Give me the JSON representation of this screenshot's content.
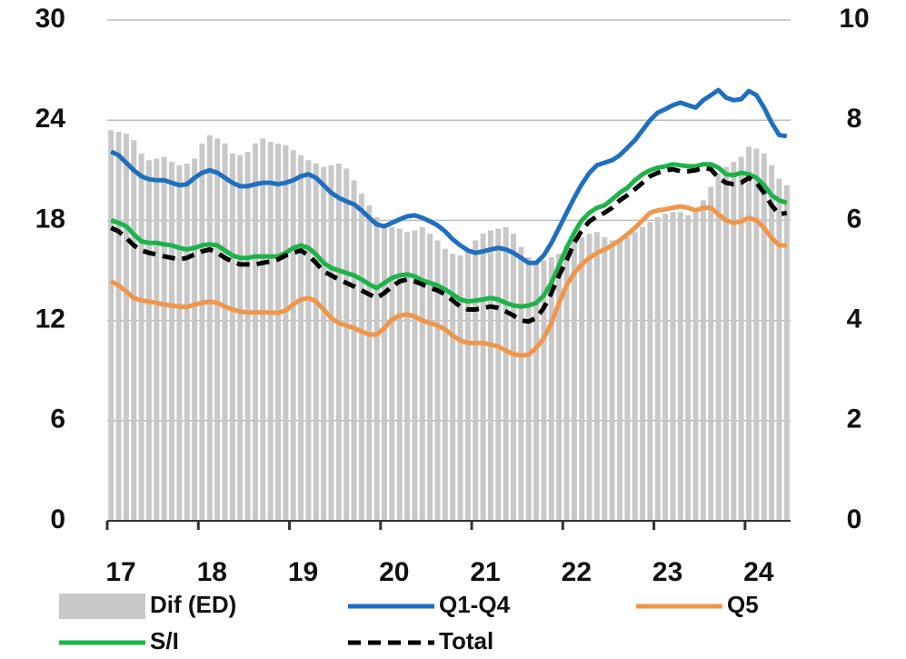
{
  "chart_data": {
    "type": "bar-line",
    "legend": "bottom",
    "grid": true,
    "categories": [
      "17",
      null,
      null,
      null,
      null,
      null,
      null,
      null,
      null,
      null,
      null,
      null,
      "18",
      null,
      null,
      null,
      null,
      null,
      null,
      null,
      null,
      null,
      null,
      null,
      "19",
      null,
      null,
      null,
      null,
      null,
      null,
      null,
      null,
      null,
      null,
      null,
      "20",
      null,
      null,
      null,
      null,
      null,
      null,
      null,
      null,
      null,
      null,
      null,
      "21",
      null,
      null,
      null,
      null,
      null,
      null,
      null,
      null,
      null,
      null,
      null,
      "22",
      null,
      null,
      null,
      null,
      null,
      null,
      null,
      null,
      null,
      null,
      null,
      "23",
      null,
      null,
      null,
      null,
      null,
      null,
      null,
      null,
      null,
      null,
      null,
      "24",
      null,
      null,
      null,
      null,
      null
    ],
    "ylim": [
      0,
      30
    ],
    "yticks": [
      0,
      6,
      12,
      18,
      24,
      30
    ],
    "y2lim": [
      0,
      10
    ],
    "y2ticks": [
      0,
      2,
      4,
      6,
      8,
      10
    ],
    "series": [
      {
        "name": "Dif (ED)",
        "type": "bar",
        "axis": "y",
        "color": "#c8c8c8",
        "values": [
          23.4,
          23.3,
          23.2,
          22.8,
          22,
          21.6,
          21.7,
          21.8,
          21.5,
          21.3,
          21.4,
          21.7,
          22.6,
          23.1,
          22.9,
          22.6,
          22,
          21.9,
          22.1,
          22.6,
          22.9,
          22.7,
          22.6,
          22.5,
          22.2,
          21.9,
          21.6,
          21.4,
          21.2,
          21.3,
          21.4,
          21.1,
          20.4,
          19.6,
          18.9,
          18.2,
          17.8,
          17.6,
          17.5,
          17.3,
          17.4,
          17.6,
          17.2,
          16.8,
          16.3,
          16,
          15.9,
          16.1,
          16.8,
          17.2,
          17.4,
          17.5,
          17.6,
          17.2,
          16.4,
          15.8,
          15.4,
          15.6,
          15.8,
          16,
          16.5,
          16.8,
          17,
          17.2,
          17.3,
          17,
          16.8,
          16.8,
          17,
          17.3,
          17.6,
          17.9,
          18.2,
          18.4,
          18.5,
          18.5,
          18.3,
          18.5,
          19.2,
          20,
          20.8,
          21.2,
          21.5,
          21.8,
          22.4,
          22.3,
          22,
          21.3,
          20.5,
          20.1
        ]
      },
      {
        "name": "Q1-Q4",
        "type": "line",
        "axis": "y2",
        "color": "#1f6fc0",
        "values": [
          7.37,
          7.3,
          7.15,
          7,
          6.88,
          6.82,
          6.8,
          6.8,
          6.75,
          6.7,
          6.72,
          6.85,
          6.95,
          7,
          6.95,
          6.85,
          6.75,
          6.68,
          6.68,
          6.72,
          6.75,
          6.75,
          6.72,
          6.75,
          6.8,
          6.88,
          6.92,
          6.85,
          6.7,
          6.55,
          6.45,
          6.38,
          6.32,
          6.2,
          6.05,
          5.92,
          5.88,
          5.95,
          6.02,
          6.08,
          6.1,
          6.05,
          5.98,
          5.9,
          5.78,
          5.62,
          5.5,
          5.4,
          5.35,
          5.38,
          5.42,
          5.45,
          5.42,
          5.35,
          5.25,
          5.15,
          5.15,
          5.3,
          5.55,
          5.85,
          6.15,
          6.45,
          6.72,
          6.95,
          7.1,
          7.15,
          7.2,
          7.3,
          7.45,
          7.6,
          7.8,
          8,
          8.15,
          8.22,
          8.3,
          8.35,
          8.3,
          8.25,
          8.4,
          8.5,
          8.6,
          8.45,
          8.4,
          8.42,
          8.58,
          8.5,
          8.25,
          7.95,
          7.7,
          7.68
        ]
      },
      {
        "name": "Q5",
        "type": "line",
        "axis": "y2",
        "color": "#f0964a",
        "values": [
          4.78,
          4.7,
          4.58,
          4.45,
          4.4,
          4.38,
          4.35,
          4.32,
          4.3,
          4.28,
          4.27,
          4.32,
          4.35,
          4.38,
          4.35,
          4.28,
          4.22,
          4.18,
          4.16,
          4.16,
          4.16,
          4.16,
          4.15,
          4.2,
          4.32,
          4.42,
          4.45,
          4.38,
          4.22,
          4.05,
          3.95,
          3.9,
          3.85,
          3.78,
          3.72,
          3.72,
          3.85,
          4.02,
          4.1,
          4.12,
          4.08,
          4,
          3.95,
          3.9,
          3.82,
          3.7,
          3.6,
          3.55,
          3.55,
          3.55,
          3.52,
          3.48,
          3.4,
          3.33,
          3.3,
          3.32,
          3.45,
          3.65,
          3.95,
          4.35,
          4.7,
          4.95,
          5.12,
          5.25,
          5.35,
          5.42,
          5.5,
          5.6,
          5.72,
          5.85,
          6,
          6.15,
          6.2,
          6.22,
          6.25,
          6.28,
          6.25,
          6.2,
          6.25,
          6.25,
          6.12,
          6,
          5.95,
          5.98,
          6.05,
          6,
          5.85,
          5.65,
          5.5,
          5.5
        ]
      },
      {
        "name": "S/I",
        "type": "line",
        "axis": "y2",
        "color": "#1db34a",
        "values": [
          6,
          5.95,
          5.88,
          5.72,
          5.58,
          5.55,
          5.55,
          5.52,
          5.5,
          5.45,
          5.42,
          5.45,
          5.5,
          5.52,
          5.5,
          5.4,
          5.3,
          5.25,
          5.25,
          5.28,
          5.28,
          5.28,
          5.28,
          5.35,
          5.45,
          5.5,
          5.45,
          5.32,
          5.15,
          5.05,
          5,
          4.95,
          4.9,
          4.82,
          4.72,
          4.65,
          4.75,
          4.85,
          4.9,
          4.92,
          4.88,
          4.8,
          4.75,
          4.7,
          4.62,
          4.52,
          4.42,
          4.38,
          4.4,
          4.42,
          4.45,
          4.42,
          4.35,
          4.3,
          4.28,
          4.3,
          4.35,
          4.5,
          4.75,
          5.1,
          5.45,
          5.75,
          6,
          6.15,
          6.25,
          6.3,
          6.42,
          6.55,
          6.65,
          6.8,
          6.92,
          7,
          7.05,
          7.08,
          7.12,
          7.1,
          7.08,
          7.08,
          7.12,
          7.12,
          7.05,
          6.92,
          6.9,
          6.95,
          6.92,
          6.85,
          6.7,
          6.5,
          6.4,
          6.35
        ]
      },
      {
        "name": "Total",
        "type": "line",
        "axis": "y2",
        "color": "#000000",
        "dashed": true,
        "values": [
          5.85,
          5.78,
          5.65,
          5.5,
          5.4,
          5.35,
          5.32,
          5.28,
          5.25,
          5.22,
          5.25,
          5.32,
          5.38,
          5.42,
          5.35,
          5.25,
          5.18,
          5.12,
          5.12,
          5.12,
          5.15,
          5.18,
          5.22,
          5.3,
          5.35,
          5.4,
          5.3,
          5.15,
          4.98,
          4.9,
          4.82,
          4.75,
          4.68,
          4.6,
          4.52,
          4.45,
          4.55,
          4.68,
          4.78,
          4.82,
          4.78,
          4.72,
          4.65,
          4.6,
          4.52,
          4.4,
          4.28,
          4.22,
          4.22,
          4.25,
          4.28,
          4.25,
          4.18,
          4.1,
          4,
          3.98,
          4.05,
          4.25,
          4.55,
          4.9,
          5.2,
          5.55,
          5.8,
          5.98,
          6.08,
          6.15,
          6.25,
          6.4,
          6.5,
          6.62,
          6.75,
          6.88,
          6.95,
          7,
          7.02,
          6.98,
          6.98,
          7,
          7.05,
          7.02,
          6.85,
          6.75,
          6.72,
          6.75,
          6.85,
          6.75,
          6.55,
          6.3,
          6.12,
          6.15
        ]
      }
    ]
  }
}
